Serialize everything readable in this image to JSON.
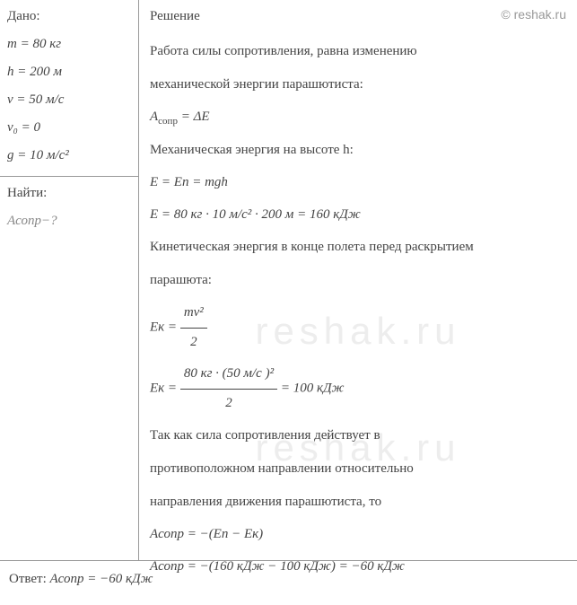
{
  "watermark": "© reshak.ru",
  "given": {
    "header": "Дано:",
    "lines": [
      "m = 80 кг",
      "h = 200 м",
      "v = 50 м/с",
      "v₀ = 0",
      "g = 10 м/с²"
    ],
    "find_label": "Найти:",
    "find_value": "Aсопр−?"
  },
  "solution": {
    "header": "Решение",
    "text1": "Работа силы сопротивления, равна изменению",
    "text2": "механической энергии парашютиста:",
    "formula1_lhs": "A",
    "formula1_sub": "сопр",
    "formula1_rhs": " = ΔE",
    "text3": "Механическая энергия на высоте h:",
    "formula2": "E = Eп = mgh",
    "formula3": "E = 80 кг · 10 м/с² · 200 м = 160 кДж",
    "text4": "Кинетическая энергия в конце полета перед раскрытием",
    "text5": "парашюта:",
    "formula4_lhs": "Eк = ",
    "formula4_num": "mv²",
    "formula4_den": "2",
    "formula5_lhs": "Eк = ",
    "formula5_num": "80 кг · (50 м/с )²",
    "formula5_den": "2",
    "formula5_rhs": " = 100 кДж",
    "text6": "Так как сила сопротивления действует в",
    "text7": "противоположном направлении относительно",
    "text8": "направления движения парашютиста, то",
    "formula6": "Aсопр = −(Eп − Eк)",
    "formula7": "Aсопр = −(160 кДж − 100 кДж) = −60 кДж"
  },
  "answer": {
    "label": "Ответ: ",
    "value": "Aсопр = −60 кДж"
  },
  "styling": {
    "background_color": "#ffffff",
    "text_color": "#444444",
    "border_color": "#999999",
    "watermark_color": "#999999",
    "base_fontsize": 15,
    "font_family": "Georgia, Times New Roman, serif",
    "overlay_watermark_color": "#ededed",
    "overlay_watermark_text": "reshak.ru"
  }
}
